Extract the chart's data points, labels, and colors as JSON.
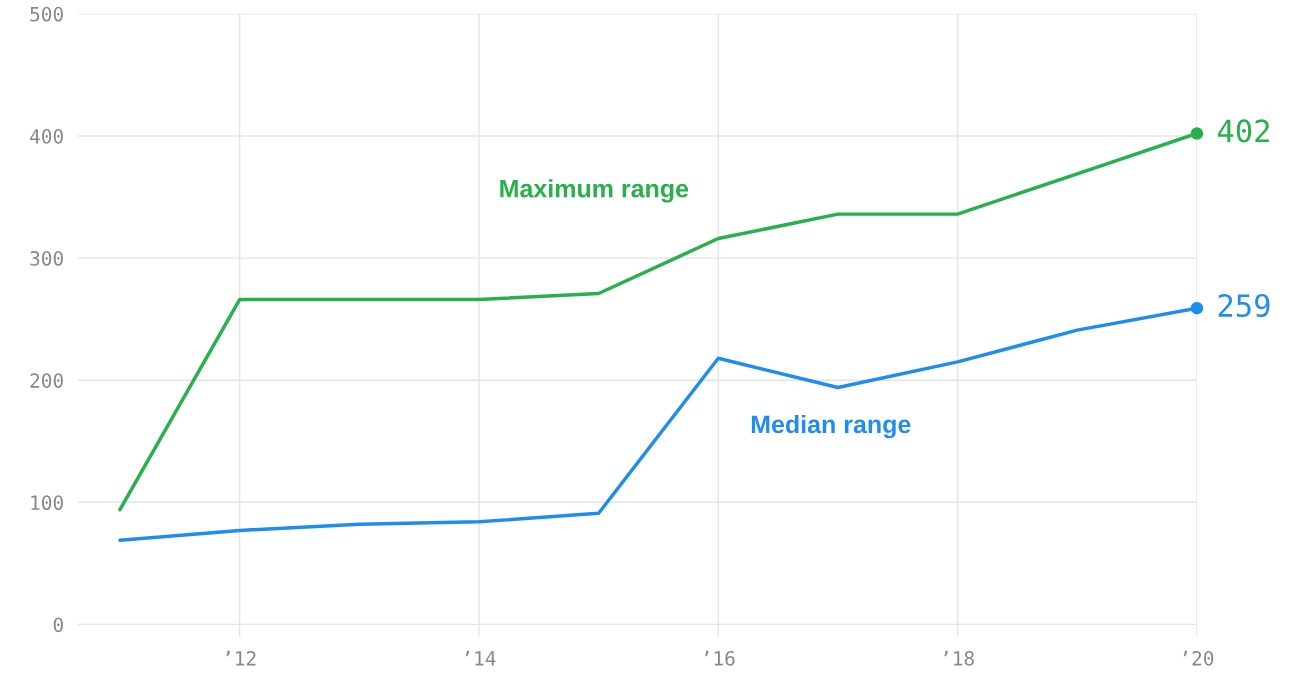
{
  "chart_data": {
    "type": "line",
    "x": [
      2011,
      2012,
      2013,
      2014,
      2015,
      2016,
      2017,
      2018,
      2019,
      2020
    ],
    "series": [
      {
        "name": "Maximum range",
        "color": "#27b04b",
        "values": [
          94,
          266,
          266,
          266,
          271,
          316,
          336,
          336,
          369,
          402
        ],
        "value_labels": [
          null,
          null,
          null,
          null,
          null,
          null,
          null,
          null,
          null,
          "402"
        ]
      },
      {
        "name": "Median range",
        "color": "#1f8ded",
        "values": [
          69,
          77,
          82,
          84,
          91,
          218,
          194,
          215,
          241,
          259
        ],
        "value_labels": [
          null,
          null,
          null,
          null,
          null,
          null,
          null,
          null,
          null,
          "259"
        ]
      }
    ],
    "xlim": [
      2010.65,
      2020
    ],
    "ylim": [
      -10,
      500
    ],
    "xticks": [
      {
        "value": 2012,
        "label": "’12"
      },
      {
        "value": 2014,
        "label": "’14"
      },
      {
        "value": 2016,
        "label": "’16"
      },
      {
        "value": 2018,
        "label": "’18"
      },
      {
        "value": 2020,
        "label": "’20"
      }
    ],
    "yticks": [
      0,
      100,
      200,
      300,
      400,
      500
    ],
    "grid": true,
    "legend": false,
    "line_style": "solid"
  }
}
